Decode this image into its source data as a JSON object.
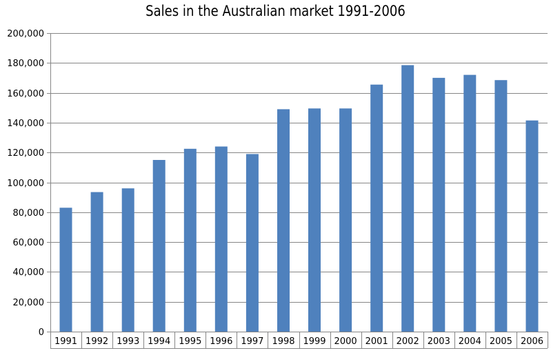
{
  "chart_data": {
    "type": "bar",
    "title": "Sales in the Australian market 1991-2006",
    "xlabel": "",
    "ylabel": "",
    "categories": [
      "1991",
      "1992",
      "1993",
      "1994",
      "1995",
      "1996",
      "1997",
      "1998",
      "1999",
      "2000",
      "2001",
      "2002",
      "2003",
      "2004",
      "2005",
      "2006"
    ],
    "values": [
      83000,
      93500,
      96000,
      115000,
      122500,
      124000,
      119000,
      149000,
      149500,
      149500,
      165500,
      178500,
      170000,
      172000,
      168500,
      141500
    ],
    "ylim": [
      0,
      200000
    ],
    "yticks": [
      0,
      20000,
      40000,
      60000,
      80000,
      100000,
      120000,
      140000,
      160000,
      180000,
      200000
    ],
    "ytick_labels": [
      "0",
      "20,000",
      "40,000",
      "60,000",
      "80,000",
      "100,000",
      "120,000",
      "140,000",
      "160,000",
      "180,000",
      "200,000"
    ],
    "grid": true,
    "legend": false,
    "colors": {
      "bar": "#4f81bd",
      "grid": "#868686",
      "axis": "#868686"
    }
  }
}
